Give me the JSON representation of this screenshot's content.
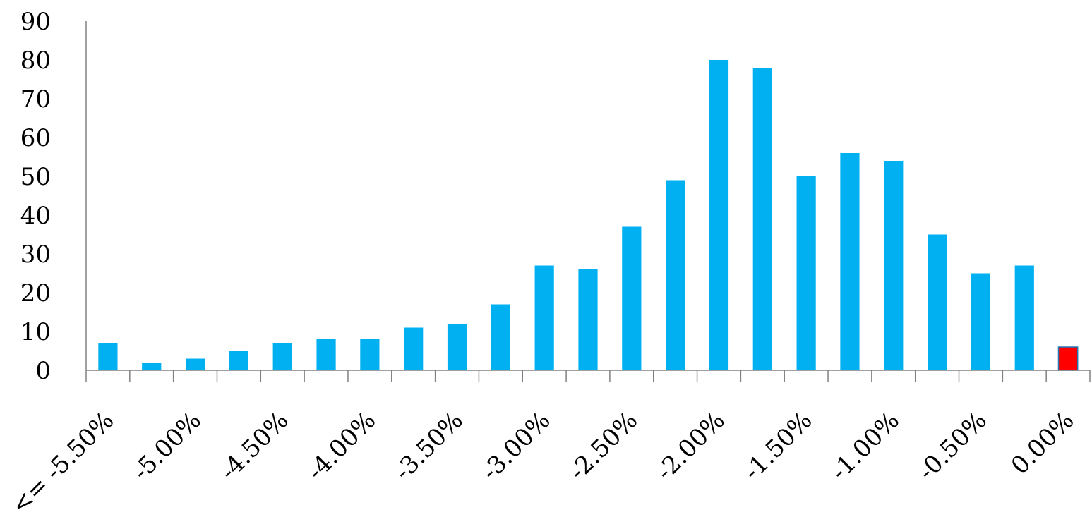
{
  "chart_data": {
    "type": "bar",
    "categories": [
      "<= -5.50%",
      "",
      "-5.00%",
      "",
      "-4.50%",
      "",
      "-4.00%",
      "",
      "-3.50%",
      "",
      "-3.00%",
      "",
      "-2.50%",
      "",
      "-2.00%",
      "",
      "-1.50%",
      "",
      "-1.00%",
      "",
      "-0.50%",
      "",
      "0.00%"
    ],
    "values": [
      7,
      2,
      3,
      5,
      7,
      8,
      8,
      11,
      12,
      17,
      27,
      26,
      37,
      49,
      80,
      78,
      50,
      56,
      54,
      35,
      25,
      27,
      6
    ],
    "colors": {
      "bar": "#00b0f0",
      "highlight": "#ff0000",
      "highlight_border": "#1f77b4"
    },
    "highlight_index": 22,
    "ylim": [
      0,
      90
    ],
    "yticks": [
      0,
      10,
      20,
      30,
      40,
      50,
      60,
      70,
      80,
      90
    ],
    "grid": false,
    "legend": "none"
  }
}
